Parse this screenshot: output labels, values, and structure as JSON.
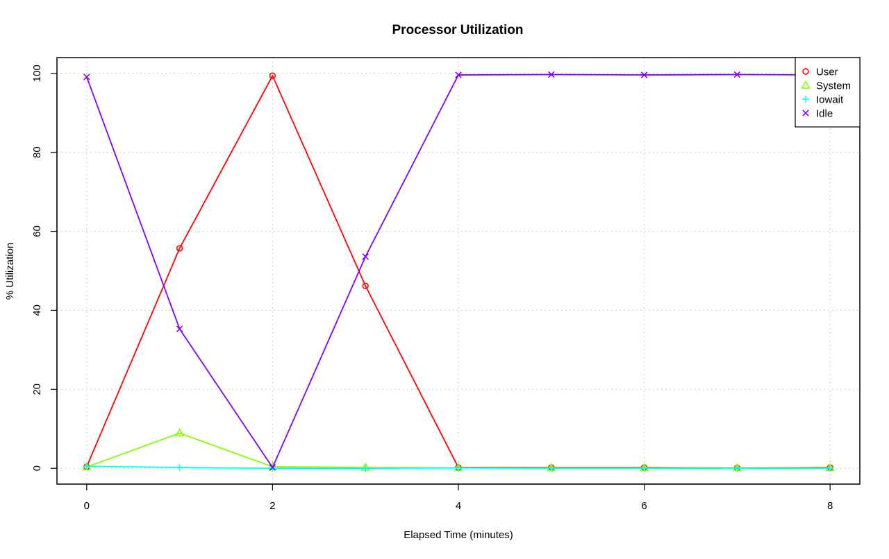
{
  "chart_data": {
    "type": "line",
    "title": "Processor Utilization",
    "xlabel": "Elapsed Time (minutes)",
    "ylabel": "% Utilization",
    "x": [
      0,
      1,
      2,
      3,
      4,
      5,
      6,
      7,
      8
    ],
    "xlim": [
      -0.32,
      8.32
    ],
    "ylim": [
      -4,
      104
    ],
    "xticks": [
      0,
      2,
      4,
      6,
      8
    ],
    "yticks": [
      0,
      20,
      40,
      60,
      80,
      100
    ],
    "grid": true,
    "legend_position": "top-right",
    "series": [
      {
        "name": "User",
        "color": "#ff0000",
        "marker": "circle",
        "values": [
          0.4,
          55.7,
          99.4,
          46.2,
          0.2,
          0.2,
          0.2,
          0.1,
          0.2
        ]
      },
      {
        "name": "System",
        "color": "#80ff00",
        "marker": "triangle",
        "values": [
          0.3,
          8.9,
          0.4,
          0.2,
          0.1,
          0.1,
          0.1,
          0.1,
          0.1
        ]
      },
      {
        "name": "Iowait",
        "color": "#00ffff",
        "marker": "plus",
        "values": [
          0.5,
          0.2,
          0.0,
          0.0,
          0.1,
          0.0,
          0.0,
          0.0,
          0.0
        ]
      },
      {
        "name": "Idle",
        "color": "#8000ff",
        "marker": "cross",
        "values": [
          99.1,
          35.3,
          0.2,
          53.6,
          99.6,
          99.7,
          99.6,
          99.7,
          99.6
        ]
      }
    ]
  }
}
